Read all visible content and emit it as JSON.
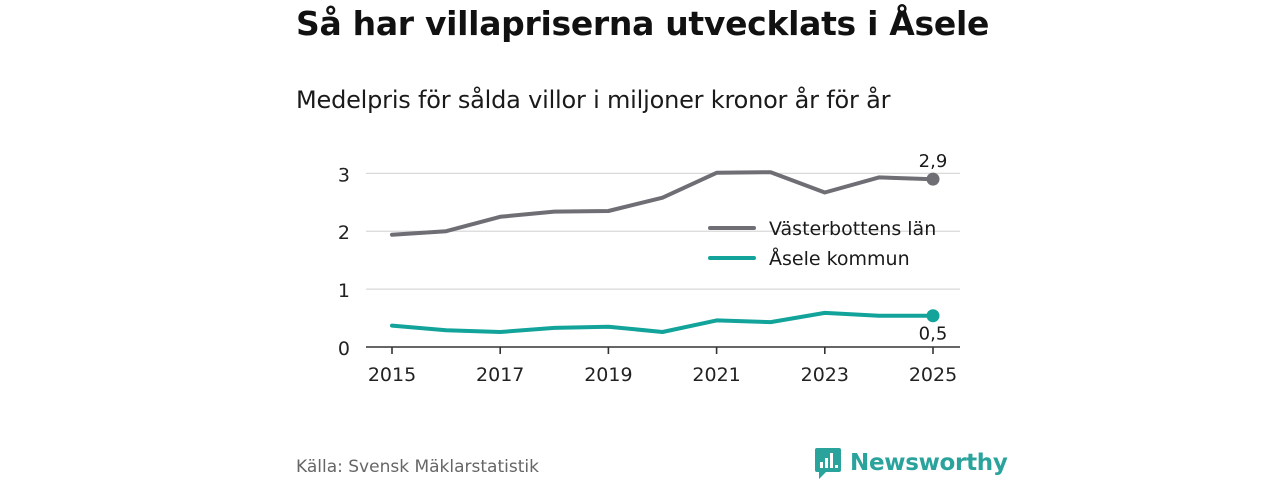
{
  "header": {
    "title": "Så har villapriserna utvecklats i Åsele",
    "subtitle": "Medelpris för sålda villor i miljoner kronor år för år"
  },
  "footer": {
    "source": "Källa: Svensk Mäklarstatistik",
    "brand": "Newsworthy"
  },
  "colors": {
    "series_a": "#6e6e74",
    "series_b": "#12a39a",
    "grid": "#d9d9d9",
    "axis": "#333333",
    "brand": "#2aa39c"
  },
  "chart_data": {
    "type": "line",
    "title": "Så har villapriserna utvecklats i Åsele",
    "subtitle": "Medelpris för sålda villor i miljoner kronor år för år",
    "xlabel": "",
    "ylabel": "",
    "x": [
      2015,
      2016,
      2017,
      2018,
      2019,
      2020,
      2021,
      2022,
      2023,
      2024,
      2025
    ],
    "xticks": [
      "2015",
      "2017",
      "2019",
      "2021",
      "2023",
      "2025"
    ],
    "yticks": [
      "0",
      "1",
      "2",
      "3"
    ],
    "ylim": [
      0,
      3.3
    ],
    "grid": true,
    "legend_position": "right",
    "series": [
      {
        "name": "Västerbottens län",
        "values": [
          1.94,
          2.0,
          2.25,
          2.34,
          2.35,
          2.58,
          3.01,
          3.02,
          2.67,
          2.93,
          2.9
        ],
        "end_label": "2,9"
      },
      {
        "name": "Åsele kommun",
        "values": [
          0.37,
          0.29,
          0.26,
          0.33,
          0.35,
          0.26,
          0.46,
          0.43,
          0.59,
          0.54,
          0.54
        ],
        "end_label": "0,5"
      }
    ]
  }
}
